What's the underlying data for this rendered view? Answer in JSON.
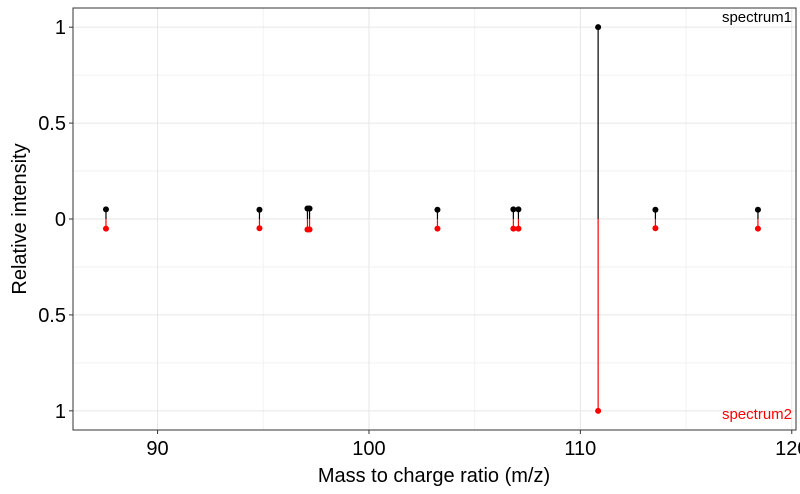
{
  "chart_data": {
    "type": "mirror-spectrum",
    "xlabel": "Mass to charge ratio (m/z)",
    "ylabel": "Relative intensity",
    "xlim": [
      86,
      120.2
    ],
    "ylim": [
      -1.1,
      1.1
    ],
    "x_ticks": [
      90,
      100,
      110,
      120
    ],
    "y_ticks": [
      {
        "value": 1,
        "label": "1"
      },
      {
        "value": 0.5,
        "label": "0.5"
      },
      {
        "value": 0,
        "label": "0"
      },
      {
        "value": -0.5,
        "label": "0.5"
      },
      {
        "value": -1,
        "label": "1"
      }
    ],
    "grid": true,
    "series": [
      {
        "name": "spectrum1",
        "color": "#000000",
        "direction": "up",
        "mz": [
          87.56,
          94.82,
          97.09,
          97.19,
          103.24,
          106.83,
          107.07,
          110.84,
          113.55,
          118.4
        ],
        "intensity": [
          0.05,
          0.048,
          0.055,
          0.055,
          0.048,
          0.05,
          0.05,
          1.0,
          0.048,
          0.048
        ]
      },
      {
        "name": "spectrum2",
        "color": "#ff0000",
        "direction": "down",
        "mz": [
          87.56,
          94.82,
          97.09,
          97.19,
          103.24,
          106.83,
          107.07,
          110.84,
          113.55,
          118.4
        ],
        "intensity": [
          0.05,
          0.048,
          0.055,
          0.055,
          0.05,
          0.05,
          0.05,
          1.0,
          0.048,
          0.05
        ]
      }
    ]
  }
}
